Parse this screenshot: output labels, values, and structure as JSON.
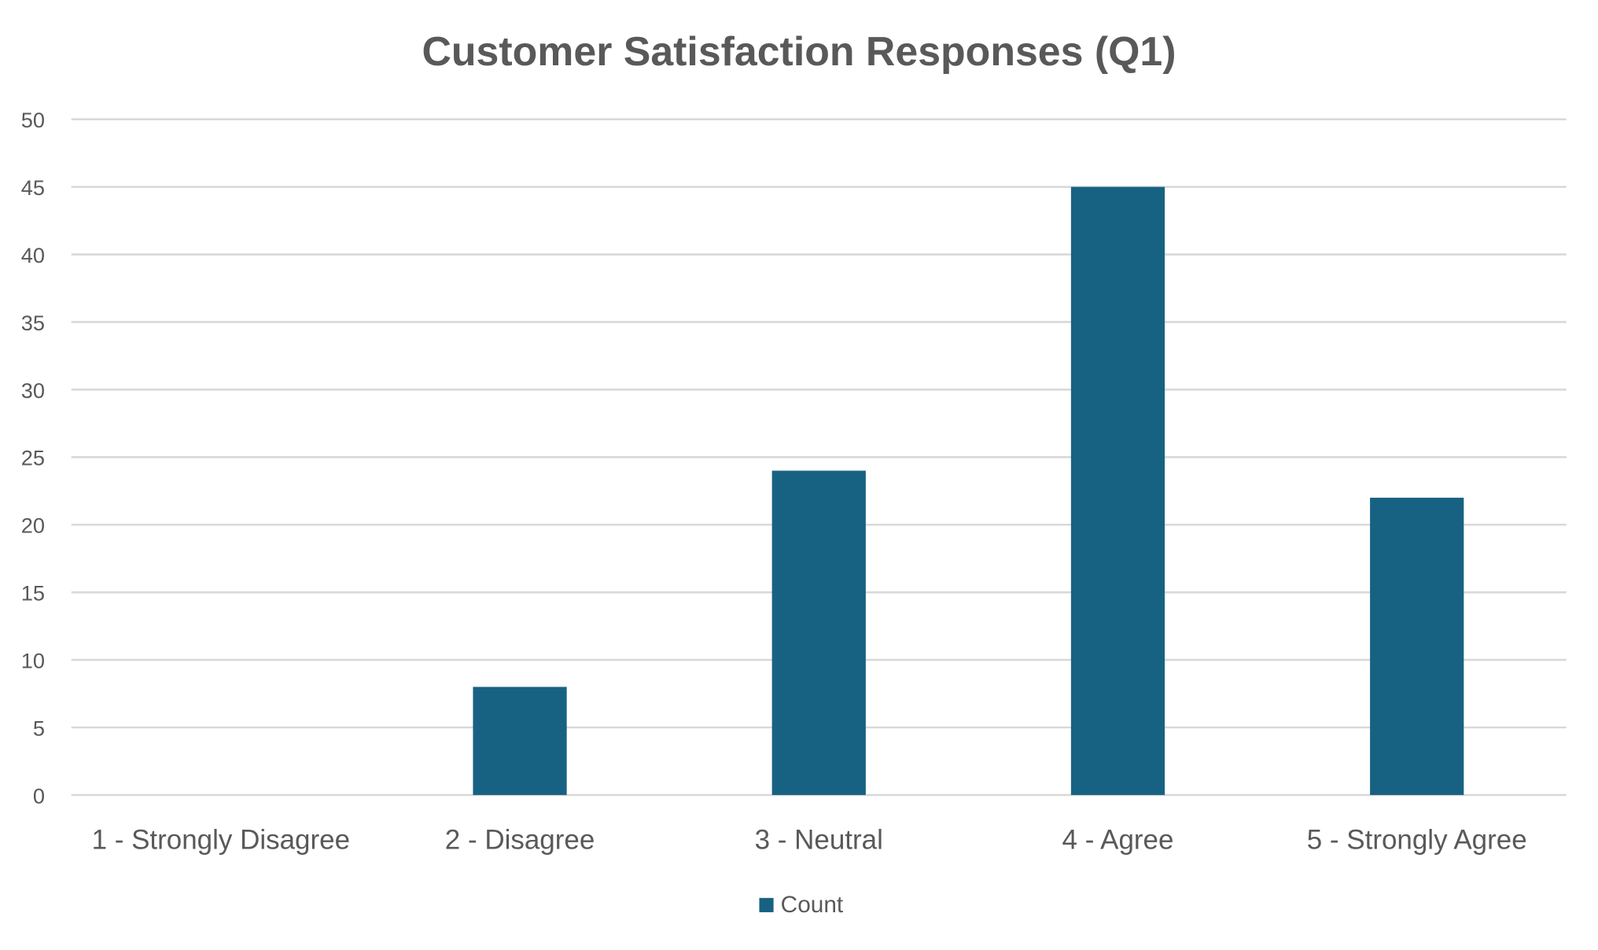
{
  "chart_data": {
    "type": "bar",
    "title": "Customer Satisfaction Responses (Q1)",
    "xlabel": "",
    "ylabel": "",
    "categories": [
      "1 - Strongly Disagree",
      "2 - Disagree",
      "3 - Neutral",
      "4 - Agree",
      "5 - Strongly Agree"
    ],
    "series": [
      {
        "name": "Count",
        "values": [
          0,
          8,
          24,
          45,
          22
        ],
        "color": "#176282"
      }
    ],
    "ylim": [
      0,
      50
    ],
    "yticks": [
      0,
      5,
      10,
      15,
      20,
      25,
      30,
      35,
      40,
      45,
      50
    ],
    "grid": true,
    "legend": "bottom-center"
  }
}
